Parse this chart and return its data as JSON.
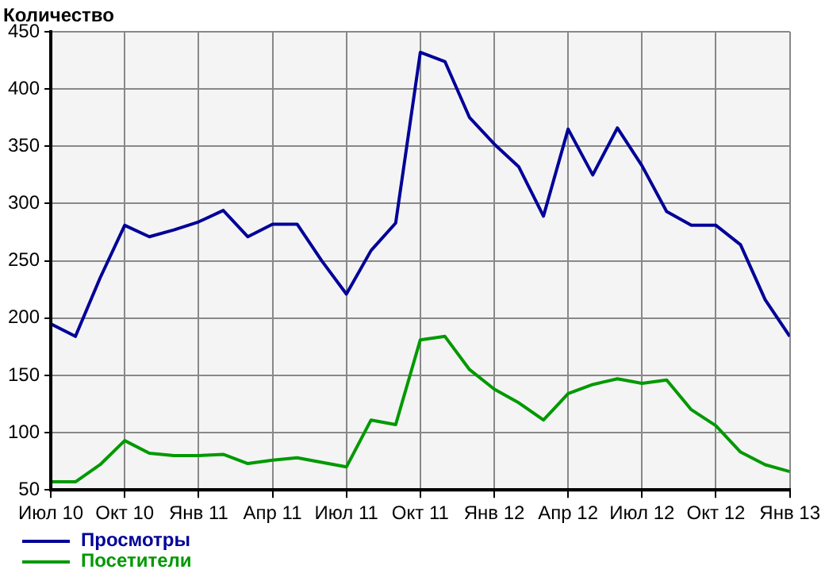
{
  "chart_data": {
    "type": "line",
    "ylabel": "Количество",
    "x": [
      "2010-07",
      "2010-08",
      "2010-09",
      "2010-10",
      "2010-11",
      "2010-12",
      "2011-01",
      "2011-02",
      "2011-03",
      "2011-04",
      "2011-05",
      "2011-06",
      "2011-07",
      "2011-08",
      "2011-09",
      "2011-10",
      "2011-11",
      "2011-12",
      "2012-01",
      "2012-02",
      "2012-03",
      "2012-04",
      "2012-05",
      "2012-06",
      "2012-07",
      "2012-08",
      "2012-09",
      "2012-10",
      "2012-11",
      "2012-12",
      "2013-01"
    ],
    "series": [
      {
        "name": "Просмотры",
        "color": "#000099",
        "values": [
          195,
          184,
          235,
          281,
          271,
          277,
          284,
          294,
          271,
          282,
          282,
          250,
          221,
          259,
          283,
          432,
          424,
          375,
          352,
          332,
          289,
          365,
          325,
          366,
          333,
          293,
          281,
          281,
          264,
          216,
          184
        ]
      },
      {
        "name": "Посетители",
        "color": "#009900",
        "values": [
          57,
          57,
          72,
          93,
          82,
          80,
          80,
          81,
          73,
          76,
          78,
          74,
          70,
          111,
          107,
          181,
          184,
          155,
          138,
          126,
          111,
          134,
          142,
          147,
          143,
          146,
          120,
          106,
          83,
          72,
          66
        ]
      }
    ],
    "xlim": [
      "2010-07",
      "2013-01"
    ],
    "xticks": [
      {
        "value": "2010-07",
        "label": "Июл 10"
      },
      {
        "value": "2010-10",
        "label": "Окт 10"
      },
      {
        "value": "2011-01",
        "label": "Янв 11"
      },
      {
        "value": "2011-04",
        "label": "Апр 11"
      },
      {
        "value": "2011-07",
        "label": "Июл 11"
      },
      {
        "value": "2011-10",
        "label": "Окт 11"
      },
      {
        "value": "2012-01",
        "label": "Янв 12"
      },
      {
        "value": "2012-04",
        "label": "Апр 12"
      },
      {
        "value": "2012-07",
        "label": "Июл 12"
      },
      {
        "value": "2012-10",
        "label": "Окт 12"
      },
      {
        "value": "2013-01",
        "label": "Янв 13"
      }
    ],
    "ylim": [
      50,
      450
    ],
    "yticks": [
      50,
      100,
      150,
      200,
      250,
      300,
      350,
      400,
      450
    ],
    "grid": true,
    "legend": "bottom left",
    "marker": "none",
    "line_style": "solid"
  }
}
